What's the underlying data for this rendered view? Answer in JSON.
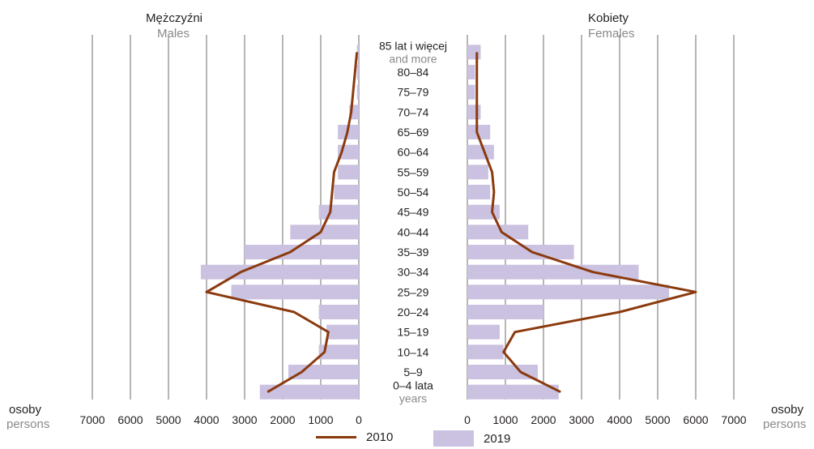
{
  "colors": {
    "bar_2019": "#cac2e0",
    "line_2010": "#8b3a0e",
    "grid": "#6d6e70"
  },
  "chart_data": {
    "type": "bar",
    "orientation": "horizontal",
    "layout": "population-pyramid",
    "left_title": "Mężczyźni",
    "left_subtitle": "Males",
    "right_title": "Kobiety",
    "right_subtitle": "Females",
    "axis_label_left": "osoby",
    "axis_label_left_sub": "persons",
    "axis_label_right": "osoby",
    "axis_label_right_sub": "persons",
    "xlim": [
      0,
      7000
    ],
    "xticks": [
      0,
      1000,
      2000,
      3000,
      4000,
      5000,
      6000,
      7000
    ],
    "categories": [
      {
        "label": "85 lat i więcej",
        "sublabel": "and more"
      },
      {
        "label": "80–84"
      },
      {
        "label": "75–79"
      },
      {
        "label": "70–74"
      },
      {
        "label": "65–69"
      },
      {
        "label": "60–64"
      },
      {
        "label": "55–59"
      },
      {
        "label": "50–54"
      },
      {
        "label": "45–49"
      },
      {
        "label": "40–44"
      },
      {
        "label": "35–39"
      },
      {
        "label": "30–34"
      },
      {
        "label": "25–29"
      },
      {
        "label": "20–24"
      },
      {
        "label": "15–19"
      },
      {
        "label": "10–14"
      },
      {
        "label": "5–9"
      },
      {
        "label": "0–4 lata",
        "sublabel": "years"
      }
    ],
    "series": [
      {
        "name": "2019",
        "type": "bar",
        "males": [
          50,
          50,
          50,
          250,
          550,
          550,
          550,
          650,
          1050,
          1800,
          3000,
          4150,
          3350,
          1050,
          850,
          1050,
          1850,
          2600
        ],
        "females": [
          350,
          200,
          200,
          350,
          600,
          700,
          550,
          600,
          850,
          1600,
          2800,
          4500,
          5300,
          2000,
          850,
          950,
          1850,
          2400
        ]
      },
      {
        "name": "2010",
        "type": "line",
        "males": [
          50,
          100,
          150,
          200,
          300,
          450,
          650,
          700,
          750,
          1000,
          1800,
          3100,
          4000,
          1700,
          800,
          900,
          1500,
          2400
        ],
        "females": [
          250,
          250,
          250,
          250,
          250,
          450,
          650,
          700,
          650,
          900,
          1700,
          3300,
          6000,
          4000,
          1250,
          950,
          1400,
          2450
        ]
      }
    ]
  },
  "legend": {
    "line_label": "2010",
    "bar_label": "2019"
  }
}
